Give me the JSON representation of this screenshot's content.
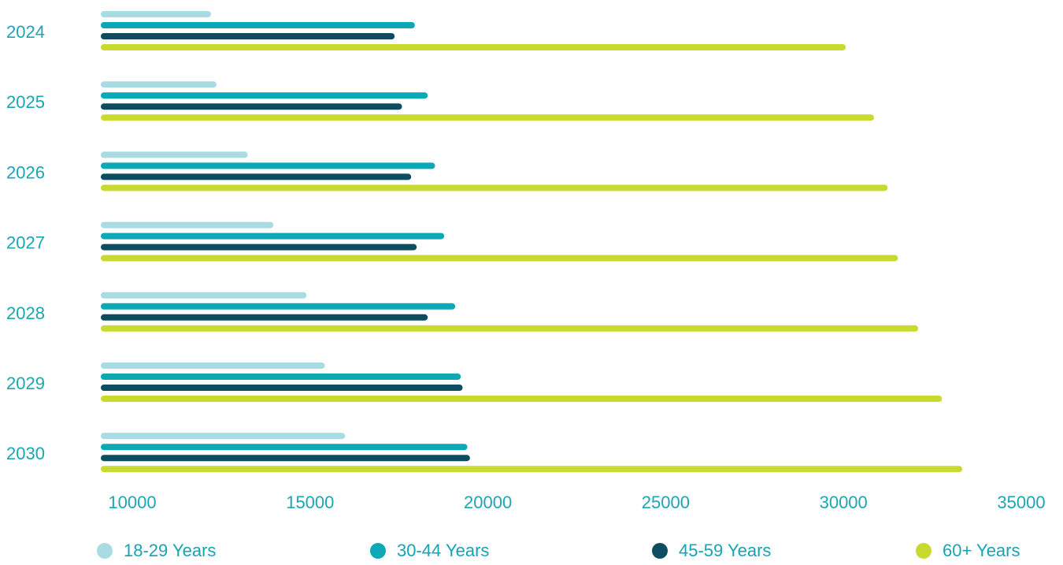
{
  "colors": {
    "label_text": "#1aa6b4",
    "legend_text": "#16a3b3"
  },
  "chart_data": {
    "type": "bar",
    "orientation": "horizontal",
    "categories": [
      "2024",
      "2025",
      "2026",
      "2027",
      "2028",
      "2029",
      "2030"
    ],
    "xlim": [
      10000,
      35000
    ],
    "xticks": [
      "10000",
      "15000",
      "20000",
      "25000",
      "30000",
      "35000"
    ],
    "series": [
      {
        "name": "18-29 Years",
        "color": "#a8dce2",
        "values": [
          13000,
          13150,
          14000,
          14700,
          15600,
          16100,
          16650
        ]
      },
      {
        "name": "30-44 Years",
        "color": "#0ea7b5",
        "values": [
          18550,
          18900,
          19100,
          19350,
          19650,
          19800,
          19980
        ]
      },
      {
        "name": "45-59 Years",
        "color": "#0c4e5f",
        "values": [
          18000,
          18200,
          18450,
          18600,
          18900,
          19850,
          20050
        ]
      },
      {
        "name": "60+ Years",
        "color": "#c9da2f",
        "values": [
          30280,
          31050,
          31420,
          31700,
          32250,
          32900,
          33450
        ]
      }
    ],
    "title": "",
    "xlabel": "",
    "ylabel": "",
    "grid": false,
    "legend": "bottom"
  }
}
